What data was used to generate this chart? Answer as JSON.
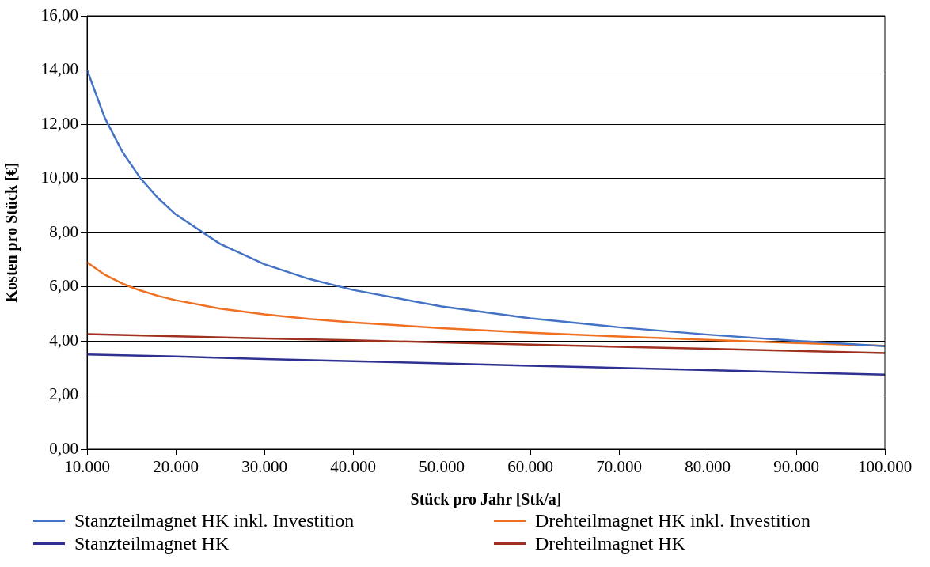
{
  "chart_data": {
    "type": "line",
    "xlabel": "Stück pro Jahr [Stk/a]",
    "ylabel": "Kosten pro Stück [€]",
    "xlim": [
      10000,
      100000
    ],
    "xticks": [
      {
        "value": 10000,
        "label": "10.000"
      },
      {
        "value": 20000,
        "label": "20.000"
      },
      {
        "value": 30000,
        "label": "30.000"
      },
      {
        "value": 40000,
        "label": "40.000"
      },
      {
        "value": 50000,
        "label": "50.000"
      },
      {
        "value": 60000,
        "label": "60.000"
      },
      {
        "value": 70000,
        "label": "70.000"
      },
      {
        "value": 80000,
        "label": "80.000"
      },
      {
        "value": 90000,
        "label": "90.000"
      },
      {
        "value": 100000,
        "label": "100.000"
      }
    ],
    "ylim": [
      0,
      16
    ],
    "yticks": [
      {
        "value": 0,
        "label": "0,00"
      },
      {
        "value": 2,
        "label": "2,00"
      },
      {
        "value": 4,
        "label": "4,00"
      },
      {
        "value": 6,
        "label": "6,00"
      },
      {
        "value": 8,
        "label": "8,00"
      },
      {
        "value": 10,
        "label": "10,00"
      },
      {
        "value": 12,
        "label": "12,00"
      },
      {
        "value": 14,
        "label": "14,00"
      },
      {
        "value": 16,
        "label": "16,00"
      }
    ],
    "grid": "y",
    "legend": "bottom",
    "marker": "none",
    "line_style": "solid",
    "series": [
      {
        "name": "Stanzteilmagnet HK inkl. Investition",
        "color": "#4472c4",
        "x": [
          10000,
          12000,
          14000,
          16000,
          18000,
          20000,
          25000,
          30000,
          35000,
          40000,
          50000,
          60000,
          70000,
          80000,
          90000,
          100000
        ],
        "values": [
          14.0,
          12.23,
          10.97,
          10.01,
          9.27,
          8.67,
          7.58,
          6.83,
          6.29,
          5.88,
          5.27,
          4.83,
          4.5,
          4.23,
          4.0,
          3.8
        ]
      },
      {
        "name": "Drehteilmagnet HK inkl. Investition",
        "color": "#f07022",
        "x": [
          10000,
          12000,
          14000,
          16000,
          18000,
          20000,
          25000,
          30000,
          35000,
          40000,
          50000,
          60000,
          70000,
          80000,
          90000,
          100000
        ],
        "values": [
          6.9,
          6.44,
          6.11,
          5.86,
          5.66,
          5.5,
          5.19,
          4.98,
          4.81,
          4.68,
          4.47,
          4.3,
          4.16,
          4.04,
          3.92,
          3.82
        ]
      },
      {
        "name": "Stanzteilmagnet HK",
        "color": "#2e3192",
        "x": [
          10000,
          20000,
          30000,
          40000,
          50000,
          60000,
          70000,
          80000,
          90000,
          100000
        ],
        "values": [
          3.5,
          3.42,
          3.33,
          3.25,
          3.17,
          3.08,
          3.0,
          2.92,
          2.83,
          2.75
        ]
      },
      {
        "name": "Drehteilmagnet HK",
        "color": "#a0301f",
        "x": [
          10000,
          20000,
          30000,
          40000,
          50000,
          60000,
          70000,
          80000,
          90000,
          100000
        ],
        "values": [
          4.25,
          4.17,
          4.09,
          4.02,
          3.94,
          3.86,
          3.78,
          3.71,
          3.63,
          3.55
        ]
      }
    ]
  }
}
